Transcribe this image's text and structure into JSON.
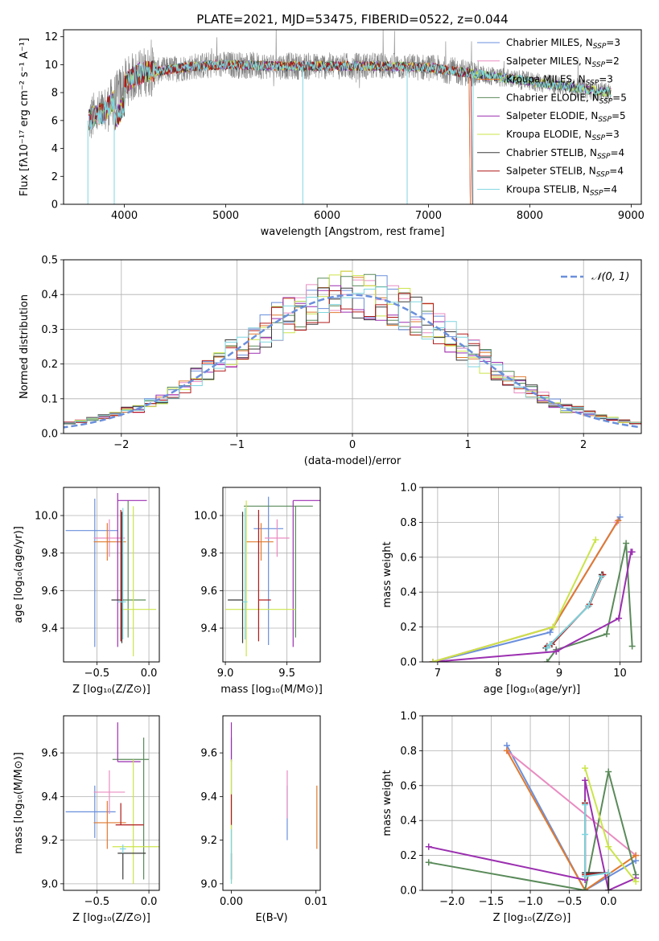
{
  "colors": {
    "chabrier_miles": "#6a8fdc",
    "salpeter_miles": "#e98cc1",
    "kroupa_miles": "#e07a2e",
    "chabrier_elodie": "#5a8a5a",
    "salpeter_elodie": "#9b2fb0",
    "kroupa_elodie": "#cbe44a",
    "chabrier_stelib": "#3a3a3a",
    "salpeter_stelib": "#b01a1a",
    "kroupa_stelib": "#7fd6e0",
    "data": "#808080",
    "gauss": "#6a8fdc",
    "grid": "#b0b0b0"
  },
  "chart_data": [
    {
      "id": "spectrum",
      "type": "line",
      "title": "PLATE=2021, MJD=53475, FIBERID=0522, z=0.044",
      "xlabel": "wavelength [Angstrom, rest frame]",
      "ylabel": "Flux [fλ10⁻¹⁷ erg cm⁻² s⁻¹ A⁻¹]",
      "xlim": [
        3400,
        9100
      ],
      "ylim": [
        0,
        12.5
      ],
      "xticks": [
        4000,
        5000,
        6000,
        7000,
        8000,
        9000
      ],
      "yticks": [
        0,
        2,
        4,
        6,
        8,
        10,
        12
      ],
      "grid": false,
      "legend": "top-right",
      "legend_entries": [
        {
          "label": "Chabrier MILES, N",
          "sub": "SSP",
          "suffix": "=3",
          "color": "chabrier_miles"
        },
        {
          "label": "Salpeter MILES, N",
          "sub": "SSP",
          "suffix": "=2",
          "color": "salpeter_miles"
        },
        {
          "label": "Kroupa MILES, N",
          "sub": "SSP",
          "suffix": "=3",
          "color": "kroupa_miles"
        },
        {
          "label": "Chabrier ELODIE, N",
          "sub": "SSP",
          "suffix": "=5",
          "color": "chabrier_elodie"
        },
        {
          "label": "Salpeter ELODIE, N",
          "sub": "SSP",
          "suffix": "=5",
          "color": "salpeter_elodie"
        },
        {
          "label": "Kroupa ELODIE, N",
          "sub": "SSP",
          "suffix": "=3",
          "color": "kroupa_elodie"
        },
        {
          "label": "Chabrier STELIB, N",
          "sub": "SSP",
          "suffix": "=4",
          "color": "chabrier_stelib"
        },
        {
          "label": "Salpeter STELIB, N",
          "sub": "SSP",
          "suffix": "=4",
          "color": "salpeter_stelib"
        },
        {
          "label": "Kroupa STELIB, N",
          "sub": "SSP",
          "suffix": "=4",
          "color": "kroupa_stelib"
        }
      ],
      "continuum": {
        "x": [
          3650,
          3700,
          3800,
          3900,
          4000,
          4100,
          4200,
          4300,
          4500,
          4700,
          5000,
          5500,
          6000,
          6500,
          7000,
          7500,
          8000,
          8500,
          8800
        ],
        "y": [
          6.0,
          6.3,
          6.6,
          7.5,
          8.6,
          9.2,
          9.5,
          9.5,
          9.7,
          9.9,
          10.0,
          9.9,
          9.9,
          9.9,
          9.8,
          9.3,
          8.8,
          8.3,
          8.0
        ]
      },
      "model_end": {
        "chabrier_miles": 7400,
        "salpeter_miles": 7400,
        "kroupa_miles": 7400,
        "salpeter_stelib": 7420
      },
      "spikes": [
        {
          "x": 3640,
          "y": 0
        },
        {
          "x": 3900,
          "y": 0
        },
        {
          "x": 5760,
          "y": 0
        },
        {
          "x": 6790,
          "y": 0
        },
        {
          "x": 7440,
          "y": 0
        }
      ]
    },
    {
      "id": "residuals",
      "type": "histogram",
      "xlabel": "(data-model)/error",
      "ylabel": "Normed distribution",
      "xlim": [
        -2.5,
        2.5
      ],
      "ylim": [
        0,
        0.5
      ],
      "xticks": [
        -2,
        -1,
        0,
        1,
        2
      ],
      "yticks": [
        0.0,
        0.1,
        0.2,
        0.3,
        0.4,
        0.5
      ],
      "grid": true,
      "legend": "top-right",
      "gauss_label": "𝒩(0, 1)",
      "bin_width": 0.1
    },
    {
      "id": "age_vs_Z",
      "type": "errorbar",
      "xlabel": "Z [log₁₀(Z/Z⊙)]",
      "ylabel": "age  [log₁₀(age/yr)]",
      "xlim": [
        -0.82,
        0.1
      ],
      "ylim": [
        9.22,
        10.15
      ],
      "xticks": [
        -0.5,
        0.0
      ],
      "yticks": [
        9.4,
        9.6,
        9.8,
        10.0
      ],
      "grid": true,
      "points": [
        {
          "c": "chabrier_miles",
          "x": -0.52,
          "xe": [
            0.28,
            0.22
          ],
          "y": 9.92,
          "ye": [
            0.62,
            0.17
          ]
        },
        {
          "c": "salpeter_miles",
          "x": -0.38,
          "xe": [
            0.15,
            0.15
          ],
          "y": 9.88,
          "ye": [
            0.1,
            0.1
          ]
        },
        {
          "c": "kroupa_miles",
          "x": -0.4,
          "xe": [
            0.13,
            0.18
          ],
          "y": 9.86,
          "ye": [
            0.1,
            0.1
          ]
        },
        {
          "c": "chabrier_elodie",
          "x": -0.2,
          "xe": [
            0.07,
            0.17
          ],
          "y": 9.55,
          "ye": [
            0.2,
            0.53
          ]
        },
        {
          "c": "salpeter_elodie",
          "x": -0.3,
          "xe": [
            0.0,
            0.28
          ],
          "y": 10.08,
          "ye": [
            0.78,
            0.04
          ]
        },
        {
          "c": "kroupa_elodie",
          "x": -0.15,
          "xe": [
            0.12,
            0.22
          ],
          "y": 9.5,
          "ye": [
            0.25,
            0.55
          ]
        },
        {
          "c": "chabrier_stelib",
          "x": -0.26,
          "xe": [
            0.1,
            0.02
          ],
          "y": 9.55,
          "ye": [
            0.23,
            0.47
          ]
        },
        {
          "c": "salpeter_stelib",
          "x": -0.27,
          "xe": [
            0.0,
            0.02
          ],
          "y": 9.55,
          "ye": [
            0.22,
            0.48
          ]
        },
        {
          "c": "kroupa_stelib",
          "x": -0.25,
          "xe": [
            0.05,
            0.03
          ],
          "y": 9.54,
          "ye": [
            0.2,
            0.5
          ]
        }
      ]
    },
    {
      "id": "age_vs_mass",
      "type": "errorbar",
      "xlabel": "mass [log₁₀(M/M⊙)]",
      "ylabel": "",
      "xlim": [
        8.98,
        9.77
      ],
      "ylim": [
        9.22,
        10.15
      ],
      "xticks": [
        9.0,
        9.5
      ],
      "yticks": [
        9.4,
        9.6,
        9.8,
        10.0
      ],
      "grid": true,
      "points": [
        {
          "c": "chabrier_miles",
          "x": 9.35,
          "xe": [
            0.12,
            0.12
          ],
          "y": 9.93,
          "ye": [
            0.62,
            0.17
          ]
        },
        {
          "c": "salpeter_miles",
          "x": 9.42,
          "xe": [
            0.1,
            0.1
          ],
          "y": 9.88,
          "ye": [
            0.1,
            0.1
          ]
        },
        {
          "c": "kroupa_miles",
          "x": 9.29,
          "xe": [
            0.12,
            0.1
          ],
          "y": 9.86,
          "ye": [
            0.1,
            0.1
          ]
        },
        {
          "c": "chabrier_elodie",
          "x": 9.57,
          "xe": [
            0.42,
            0.14
          ],
          "y": 10.05,
          "ye": [
            0.7,
            0.0
          ]
        },
        {
          "c": "salpeter_elodie",
          "x": 9.55,
          "xe": [
            0.0,
            0.22
          ],
          "y": 10.08,
          "ye": [
            0.78,
            0.0
          ]
        },
        {
          "c": "kroupa_elodie",
          "x": 9.17,
          "xe": [
            0.17,
            0.4
          ],
          "y": 9.5,
          "ye": [
            0.25,
            0.58
          ]
        },
        {
          "c": "chabrier_stelib",
          "x": 9.14,
          "xe": [
            0.12,
            0.0
          ],
          "y": 9.55,
          "ye": [
            0.23,
            0.47
          ]
        },
        {
          "c": "salpeter_stelib",
          "x": 9.27,
          "xe": [
            0.0,
            0.1
          ],
          "y": 9.55,
          "ye": [
            0.22,
            0.48
          ]
        },
        {
          "c": "kroupa_stelib",
          "x": 9.16,
          "xe": [
            0.02,
            0.02
          ],
          "y": 9.54,
          "ye": [
            0.2,
            0.5
          ]
        }
      ]
    },
    {
      "id": "weight_vs_age",
      "type": "line",
      "xlabel": "age  [log₁₀(age/yr)]",
      "ylabel": "mass weight",
      "xlim": [
        6.75,
        10.35
      ],
      "ylim": [
        0,
        1.0
      ],
      "xticks": [
        7,
        8,
        9,
        10
      ],
      "yticks": [
        0.0,
        0.2,
        0.4,
        0.6,
        0.8,
        1.0
      ],
      "grid": true,
      "series": [
        {
          "c": "chabrier_miles",
          "x": [
            6.92,
            8.85,
            10.0
          ],
          "y": [
            0.0,
            0.17,
            0.83
          ]
        },
        {
          "c": "salpeter_miles",
          "x": [
            6.92,
            8.9,
            9.95
          ],
          "y": [
            0.0,
            0.2,
            0.8
          ]
        },
        {
          "c": "kroupa_miles",
          "x": [
            6.92,
            8.9,
            9.97
          ],
          "y": [
            0.0,
            0.2,
            0.81
          ]
        },
        {
          "c": "chabrier_elodie",
          "x": [
            8.8,
            8.95,
            9.78,
            10.1,
            10.2
          ],
          "y": [
            0.0,
            0.07,
            0.16,
            0.68,
            0.09
          ]
        },
        {
          "c": "salpeter_elodie",
          "x": [
            6.92,
            8.95,
            9.98,
            10.18,
            10.2
          ],
          "y": [
            0.0,
            0.06,
            0.25,
            0.63,
            0.63
          ]
        },
        {
          "c": "kroupa_elodie",
          "x": [
            6.92,
            8.9,
            9.6
          ],
          "y": [
            0.0,
            0.2,
            0.7
          ]
        },
        {
          "c": "chabrier_stelib",
          "x": [
            8.78,
            8.85,
            9.48,
            9.7
          ],
          "y": [
            0.08,
            0.1,
            0.32,
            0.5
          ]
        },
        {
          "c": "salpeter_stelib",
          "x": [
            8.8,
            8.88,
            9.5,
            9.72
          ],
          "y": [
            0.09,
            0.1,
            0.33,
            0.5
          ]
        },
        {
          "c": "kroupa_stelib",
          "x": [
            8.8,
            8.85,
            9.48,
            9.7
          ],
          "y": [
            0.08,
            0.1,
            0.32,
            0.49
          ]
        }
      ]
    },
    {
      "id": "mass_vs_Z",
      "type": "errorbar",
      "xlabel": "Z [log₁₀(Z/Z⊙)]",
      "ylabel": "mass [log₁₀(M/M⊙)]",
      "xlim": [
        -0.82,
        0.1
      ],
      "ylim": [
        8.97,
        9.77
      ],
      "xticks": [
        -0.5,
        0.0
      ],
      "yticks": [
        9.0,
        9.2,
        9.4,
        9.6
      ],
      "grid": true,
      "points": [
        {
          "c": "chabrier_miles",
          "x": -0.52,
          "xe": [
            0.28,
            0.2
          ],
          "y": 9.33,
          "ye": [
            0.12,
            0.12
          ]
        },
        {
          "c": "salpeter_miles",
          "x": -0.38,
          "xe": [
            0.15,
            0.15
          ],
          "y": 9.42,
          "ye": [
            0.1,
            0.1
          ]
        },
        {
          "c": "kroupa_miles",
          "x": -0.4,
          "xe": [
            0.13,
            0.18
          ],
          "y": 9.28,
          "ye": [
            0.12,
            0.1
          ]
        },
        {
          "c": "chabrier_elodie",
          "x": -0.05,
          "xe": [
            0.3,
            0.05
          ],
          "y": 9.57,
          "ye": [
            0.55,
            0.1
          ]
        },
        {
          "c": "salpeter_elodie",
          "x": -0.3,
          "xe": [
            0.0,
            0.22
          ],
          "y": 9.56,
          "ye": [
            0.0,
            0.18
          ]
        },
        {
          "c": "kroupa_elodie",
          "x": -0.15,
          "xe": [
            0.2,
            0.25
          ],
          "y": 9.17,
          "ye": [
            0.17,
            0.4
          ]
        },
        {
          "c": "chabrier_stelib",
          "x": -0.25,
          "xe": [
            0.05,
            0.22
          ],
          "y": 9.14,
          "ye": [
            0.12,
            0.0
          ]
        },
        {
          "c": "salpeter_stelib",
          "x": -0.27,
          "xe": [
            0.05,
            0.22
          ],
          "y": 9.27,
          "ye": [
            0.0,
            0.1
          ]
        },
        {
          "c": "kroupa_stelib",
          "x": -0.25,
          "xe": [
            0.03,
            0.03
          ],
          "y": 9.16,
          "ye": [
            0.02,
            0.02
          ]
        }
      ]
    },
    {
      "id": "mass_vs_ebv",
      "type": "errorbar",
      "xlabel": "E(B-V)",
      "ylabel": "",
      "xlim": [
        -0.001,
        0.0105
      ],
      "ylim": [
        8.97,
        9.77
      ],
      "xticks": [
        0.0,
        0.01
      ],
      "yticks": [
        9.0,
        9.2,
        9.4,
        9.6
      ],
      "grid": false,
      "points": [
        {
          "c": "chabrier_miles",
          "x": 0.0066,
          "xe": [
            0,
            0
          ],
          "y": 9.33,
          "ye": [
            0.13,
            0.12
          ]
        },
        {
          "c": "salpeter_miles",
          "x": 0.0066,
          "xe": [
            0,
            0
          ],
          "y": 9.42,
          "ye": [
            0.12,
            0.1
          ]
        },
        {
          "c": "kroupa_miles",
          "x": 0.0101,
          "xe": [
            0,
            0
          ],
          "y": 9.28,
          "ye": [
            0.12,
            0.17
          ]
        },
        {
          "c": "chabrier_elodie",
          "x": 0.0,
          "xe": [
            0,
            0
          ],
          "y": 9.57,
          "ye": [
            0.55,
            0.1
          ]
        },
        {
          "c": "salpeter_elodie",
          "x": 0.0,
          "xe": [
            0,
            0
          ],
          "y": 9.56,
          "ye": [
            0.0,
            0.18
          ]
        },
        {
          "c": "kroupa_elodie",
          "x": 0.0,
          "xe": [
            0,
            0
          ],
          "y": 9.17,
          "ye": [
            0.17,
            0.4
          ]
        },
        {
          "c": "chabrier_stelib",
          "x": 0.0,
          "xe": [
            0,
            0
          ],
          "y": 9.14,
          "ye": [
            0.12,
            0.0
          ]
        },
        {
          "c": "salpeter_stelib",
          "x": 0.0,
          "xe": [
            0,
            0
          ],
          "y": 9.34,
          "ye": [
            0.07,
            0.07
          ]
        },
        {
          "c": "kroupa_stelib",
          "x": 0.0,
          "xe": [
            0,
            0
          ],
          "y": 9.1,
          "ye": [
            0.1,
            0.15
          ]
        }
      ]
    },
    {
      "id": "weight_vs_Z",
      "type": "line",
      "xlabel": "Z [log₁₀(Z/Z⊙)]",
      "ylabel": "mass weight",
      "xlim": [
        -2.38,
        0.42
      ],
      "ylim": [
        0,
        1.0
      ],
      "xticks": [
        -2.0,
        -1.5,
        -1.0,
        -0.5,
        0.0
      ],
      "yticks": [
        0.0,
        0.2,
        0.4,
        0.6,
        0.8,
        1.0
      ],
      "grid": true,
      "series": [
        {
          "c": "chabrier_miles",
          "x": [
            -1.3,
            -0.3,
            0.35
          ],
          "y": [
            0.83,
            0.0,
            0.17
          ]
        },
        {
          "c": "salpeter_miles",
          "x": [
            -1.3,
            0.35
          ],
          "y": [
            0.8,
            0.2
          ]
        },
        {
          "c": "kroupa_miles",
          "x": [
            -1.3,
            -0.3,
            0.35
          ],
          "y": [
            0.8,
            0.0,
            0.2
          ]
        },
        {
          "c": "chabrier_elodie",
          "x": [
            -2.3,
            -0.3,
            0.0,
            0.35
          ],
          "y": [
            0.16,
            0.0,
            0.68,
            0.09
          ]
        },
        {
          "c": "salpeter_elodie",
          "x": [
            -2.3,
            -0.3,
            -0.3,
            0.0,
            0.35
          ],
          "y": [
            0.25,
            0.06,
            0.63,
            0.0,
            0.07
          ]
        },
        {
          "c": "kroupa_elodie",
          "x": [
            -0.3,
            0.0,
            0.35
          ],
          "y": [
            0.7,
            0.25,
            0.05
          ]
        },
        {
          "c": "chabrier_stelib",
          "x": [
            -0.3,
            -0.3,
            0.0,
            0.0
          ],
          "y": [
            0.5,
            0.1,
            0.1,
            0.0
          ]
        },
        {
          "c": "salpeter_stelib",
          "x": [
            -0.3,
            -0.3,
            0.0
          ],
          "y": [
            0.5,
            0.09,
            0.1
          ]
        },
        {
          "c": "kroupa_stelib",
          "x": [
            -0.3,
            -0.3,
            -0.3,
            0.0
          ],
          "y": [
            0.49,
            0.32,
            0.08,
            0.1
          ]
        }
      ]
    }
  ]
}
